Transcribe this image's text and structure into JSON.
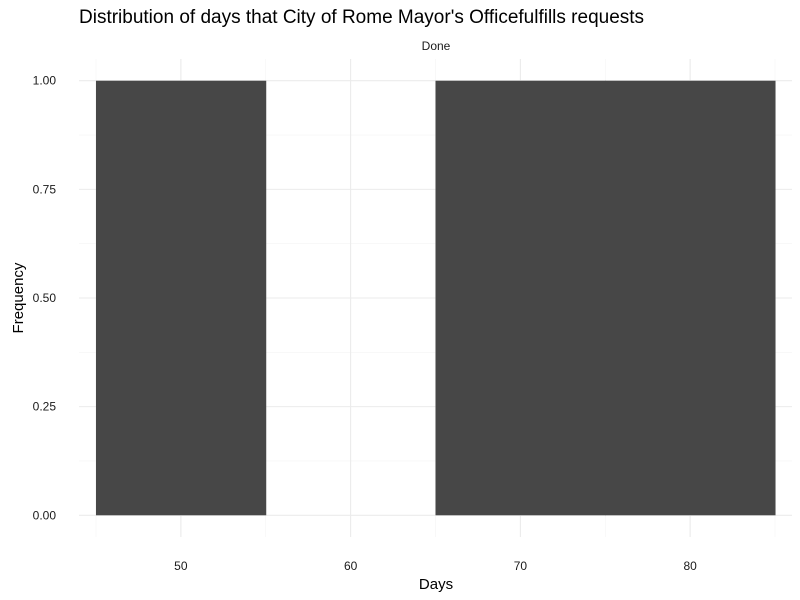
{
  "chart_data": {
    "type": "bar",
    "title": "Distribution of days that City of Rome Mayor's Officefulfills requests",
    "facet": "Done",
    "xlabel": "Days",
    "ylabel": "Frequency",
    "bars": [
      {
        "x_start": 45,
        "x_end": 55,
        "value": 1
      },
      {
        "x_start": 65,
        "x_end": 75,
        "value": 1
      },
      {
        "x_start": 75,
        "x_end": 85,
        "value": 1
      }
    ],
    "xlim": [
      44,
      86
    ],
    "ylim": [
      -0.05,
      1.05
    ],
    "x_ticks": [
      50,
      60,
      70,
      80
    ],
    "y_ticks": [
      0,
      0.25,
      0.5,
      0.75,
      1.0
    ],
    "y_tick_labels": [
      "0.00",
      "0.25",
      "0.50",
      "0.75",
      "1.00"
    ],
    "bar_color": "#474747",
    "grid": true,
    "legend": "none"
  }
}
